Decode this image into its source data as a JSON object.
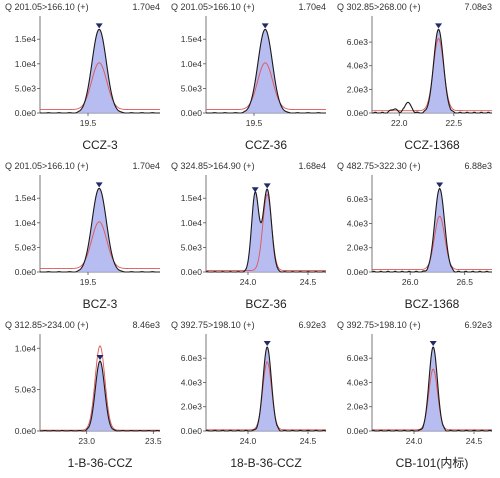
{
  "chart_data": [
    {
      "type": "line",
      "header": "Q 201.05>166.10 (+)",
      "max_label": "1.70e4",
      "title": "CCZ-3",
      "xlim": [
        19.2,
        19.95
      ],
      "ylim": [
        0,
        18500
      ],
      "x_ticks": [
        "19.5"
      ],
      "y_ticks": [
        "0.0e0",
        "5.0e3",
        "1.0e4",
        "1.5e4"
      ],
      "peaks": [
        {
          "x": 19.57,
          "height": 17000,
          "width": 0.045
        }
      ],
      "reference_height": 9500,
      "baseline": 700,
      "apex_marker": true,
      "colors": {
        "trace": "#1a1a1a",
        "fill": "#aab0ee",
        "reference": "#e05555"
      }
    },
    {
      "type": "line",
      "header": "Q 201.05>166.10 (+)",
      "max_label": "1.70e4",
      "title": "CCZ-36",
      "xlim": [
        19.2,
        19.95
      ],
      "ylim": [
        0,
        18500
      ],
      "x_ticks": [
        "19.5"
      ],
      "y_ticks": [
        "0.0e0",
        "5.0e3",
        "1.0e4",
        "1.5e4"
      ],
      "peaks": [
        {
          "x": 19.57,
          "height": 17000,
          "width": 0.045
        }
      ],
      "reference_height": 9500,
      "baseline": 700,
      "apex_marker": true,
      "colors": {
        "trace": "#1a1a1a",
        "fill": "#aab0ee",
        "reference": "#e05555"
      }
    },
    {
      "type": "line",
      "header": "Q 302.85>268.00 (+)",
      "max_label": "7.08e3",
      "title": "CCZ-1368",
      "xlim": [
        21.75,
        22.85
      ],
      "ylim": [
        0,
        7700
      ],
      "x_ticks": [
        "22.0",
        "22.5"
      ],
      "y_ticks": [
        "0.0e0",
        "2.0e3",
        "4.0e3",
        "6.0e3"
      ],
      "peaks": [
        {
          "x": 22.36,
          "height": 7080,
          "width": 0.045
        },
        {
          "x": 22.08,
          "height": 900,
          "width": 0.03
        },
        {
          "x": 21.95,
          "height": 350,
          "width": 0.03
        }
      ],
      "reference_height": 6100,
      "baseline": 200,
      "apex_marker": true,
      "colors": {
        "trace": "#1a1a1a",
        "fill": "#aab0ee",
        "reference": "#e05555"
      }
    },
    {
      "type": "line",
      "header": "Q 201.05>166.10 (+)",
      "max_label": "1.70e4",
      "title": "BCZ-3",
      "xlim": [
        19.2,
        19.95
      ],
      "ylim": [
        0,
        18500
      ],
      "x_ticks": [
        "19.5"
      ],
      "y_ticks": [
        "0.0e0",
        "5.0e3",
        "1.0e4",
        "1.5e4"
      ],
      "peaks": [
        {
          "x": 19.57,
          "height": 17000,
          "width": 0.045
        }
      ],
      "reference_height": 9500,
      "baseline": 700,
      "apex_marker": true,
      "colors": {
        "trace": "#1a1a1a",
        "fill": "#aab0ee",
        "reference": "#e05555"
      }
    },
    {
      "type": "line",
      "header": "Q 324.85>164.90 (+)",
      "max_label": "1.68e4",
      "title": "BCZ-36",
      "xlim": [
        23.65,
        24.65
      ],
      "ylim": [
        0,
        18500
      ],
      "x_ticks": [
        "24.0",
        "24.5"
      ],
      "y_ticks": [
        "0.0e0",
        "5.0e3",
        "1.0e4",
        "1.5e4"
      ],
      "peaks": [
        {
          "x": 24.06,
          "height": 16000,
          "width": 0.03
        },
        {
          "x": 24.16,
          "height": 16800,
          "width": 0.035
        }
      ],
      "reference_height": 15500,
      "baseline": 300,
      "apex_marker": true,
      "colors": {
        "trace": "#1a1a1a",
        "fill": "#aab0ee",
        "reference": "#e05555"
      }
    },
    {
      "type": "line",
      "header": "Q 482.75>322.30 (+)",
      "max_label": "6.88e3",
      "title": "BCZ-1368",
      "xlim": [
        25.65,
        26.75
      ],
      "ylim": [
        0,
        7500
      ],
      "x_ticks": [
        "26.0",
        "26.5"
      ],
      "y_ticks": [
        "0.0e0",
        "2.0e3",
        "4.0e3",
        "6.0e3"
      ],
      "peaks": [
        {
          "x": 26.27,
          "height": 6880,
          "width": 0.045
        }
      ],
      "reference_height": 4400,
      "baseline": 200,
      "apex_marker": true,
      "colors": {
        "trace": "#1a1a1a",
        "fill": "#aab0ee",
        "reference": "#e05555"
      }
    },
    {
      "type": "line",
      "header": "Q 312.85>234.00 (+)",
      "max_label": "8.46e3",
      "title": "1-B-36-CCZ",
      "xlim": [
        22.65,
        23.55
      ],
      "ylim": [
        0,
        11000
      ],
      "x_ticks": [
        "23.0",
        "23.5"
      ],
      "y_ticks": [
        "0.0e0",
        "5.0e3",
        "1.0e4"
      ],
      "peaks": [
        {
          "x": 23.1,
          "height": 8460,
          "width": 0.035
        }
      ],
      "reference_height": 10200,
      "baseline": 100,
      "apex_marker": true,
      "colors": {
        "trace": "#1a1a1a",
        "fill": "#aab0ee",
        "reference": "#e05555"
      }
    },
    {
      "type": "line",
      "header": "Q 392.75>198.10 (+)",
      "max_label": "6.92e3",
      "title": "18-B-36-CCZ",
      "xlim": [
        23.65,
        24.65
      ],
      "ylim": [
        0,
        7500
      ],
      "x_ticks": [
        "24.0",
        "24.5"
      ],
      "y_ticks": [
        "0.0e0",
        "2.0e3",
        "4.0e3",
        "6.0e3"
      ],
      "peaks": [
        {
          "x": 24.16,
          "height": 6920,
          "width": 0.035
        }
      ],
      "reference_height": 5600,
      "baseline": 100,
      "apex_marker": true,
      "colors": {
        "trace": "#1a1a1a",
        "fill": "#aab0ee",
        "reference": "#e05555"
      }
    },
    {
      "type": "line",
      "header": "Q 392.75>198.10 (+)",
      "max_label": "6.92e3",
      "title": "CB-101(内标)",
      "xlim": [
        23.65,
        24.65
      ],
      "ylim": [
        0,
        7500
      ],
      "x_ticks": [
        "24.0",
        "24.5"
      ],
      "y_ticks": [
        "0.0e0",
        "2.0e3",
        "4.0e3",
        "6.0e3"
      ],
      "peaks": [
        {
          "x": 24.16,
          "height": 6920,
          "width": 0.035
        }
      ],
      "reference_height": 5000,
      "baseline": 100,
      "apex_marker": true,
      "colors": {
        "trace": "#1a1a1a",
        "fill": "#aab0ee",
        "reference": "#e05555"
      }
    }
  ]
}
